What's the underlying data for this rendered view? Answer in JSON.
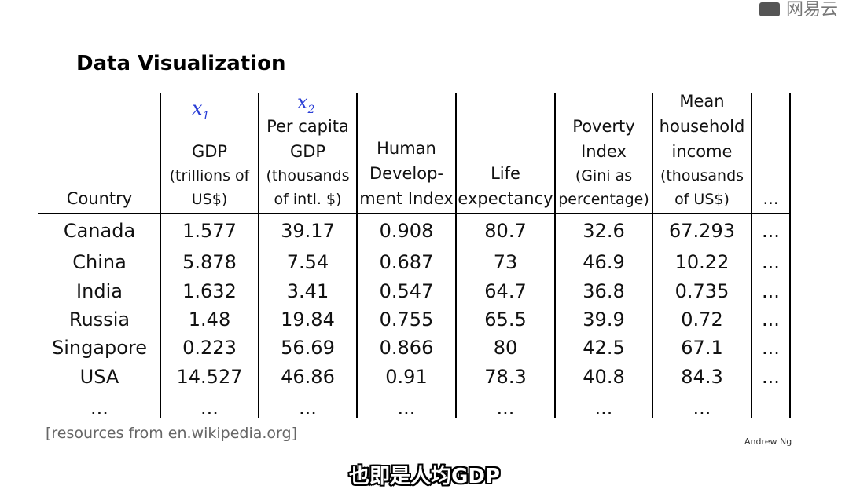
{
  "watermark": {
    "text": "网易云"
  },
  "slide": {
    "title": "Data Visualization",
    "feature_marks": [
      {
        "label": "x",
        "sub": "1"
      },
      {
        "label": "x",
        "sub": "2"
      }
    ],
    "columns": [
      {
        "lines": [
          "Country"
        ],
        "sub": []
      },
      {
        "lines": [
          "GDP"
        ],
        "sub": [
          "(trillions of",
          "US$)"
        ]
      },
      {
        "lines": [
          "Per capita",
          "GDP"
        ],
        "sub": [
          "(thousands",
          "of intl. $)"
        ]
      },
      {
        "lines": [
          "Human",
          "Develop-",
          "ment Index"
        ],
        "sub": []
      },
      {
        "lines": [
          "Life",
          "expectancy"
        ],
        "sub": []
      },
      {
        "lines": [
          "Poverty",
          "Index"
        ],
        "sub": [
          "(Gini as",
          "percentage)"
        ]
      },
      {
        "lines": [
          "Mean",
          "household",
          "income"
        ],
        "sub": [
          "(thousands",
          "of US$)"
        ]
      },
      {
        "lines": [
          "..."
        ],
        "sub": []
      }
    ],
    "rows": [
      [
        "Canada",
        "1.577",
        "39.17",
        "0.908",
        "80.7",
        "32.6",
        "67.293",
        "..."
      ],
      [
        "China",
        "5.878",
        "7.54",
        "0.687",
        "73",
        "46.9",
        "10.22",
        "..."
      ],
      [
        "India",
        "1.632",
        "3.41",
        "0.547",
        "64.7",
        "36.8",
        "0.735",
        "..."
      ],
      [
        "Russia",
        "1.48",
        "19.84",
        "0.755",
        "65.5",
        "39.9",
        "0.72",
        "..."
      ],
      [
        "Singapore",
        "0.223",
        "56.69",
        "0.866",
        "80",
        "42.5",
        "67.1",
        "..."
      ],
      [
        "USA",
        "14.527",
        "46.86",
        "0.91",
        "78.3",
        "40.8",
        "84.3",
        "..."
      ],
      [
        "...",
        "...",
        "...",
        "...",
        "...",
        "...",
        "...",
        ""
      ]
    ],
    "source": "[resources from en.wikipedia.org]",
    "author": "Andrew Ng"
  },
  "caption": {
    "text": "也即是人均GDP"
  }
}
